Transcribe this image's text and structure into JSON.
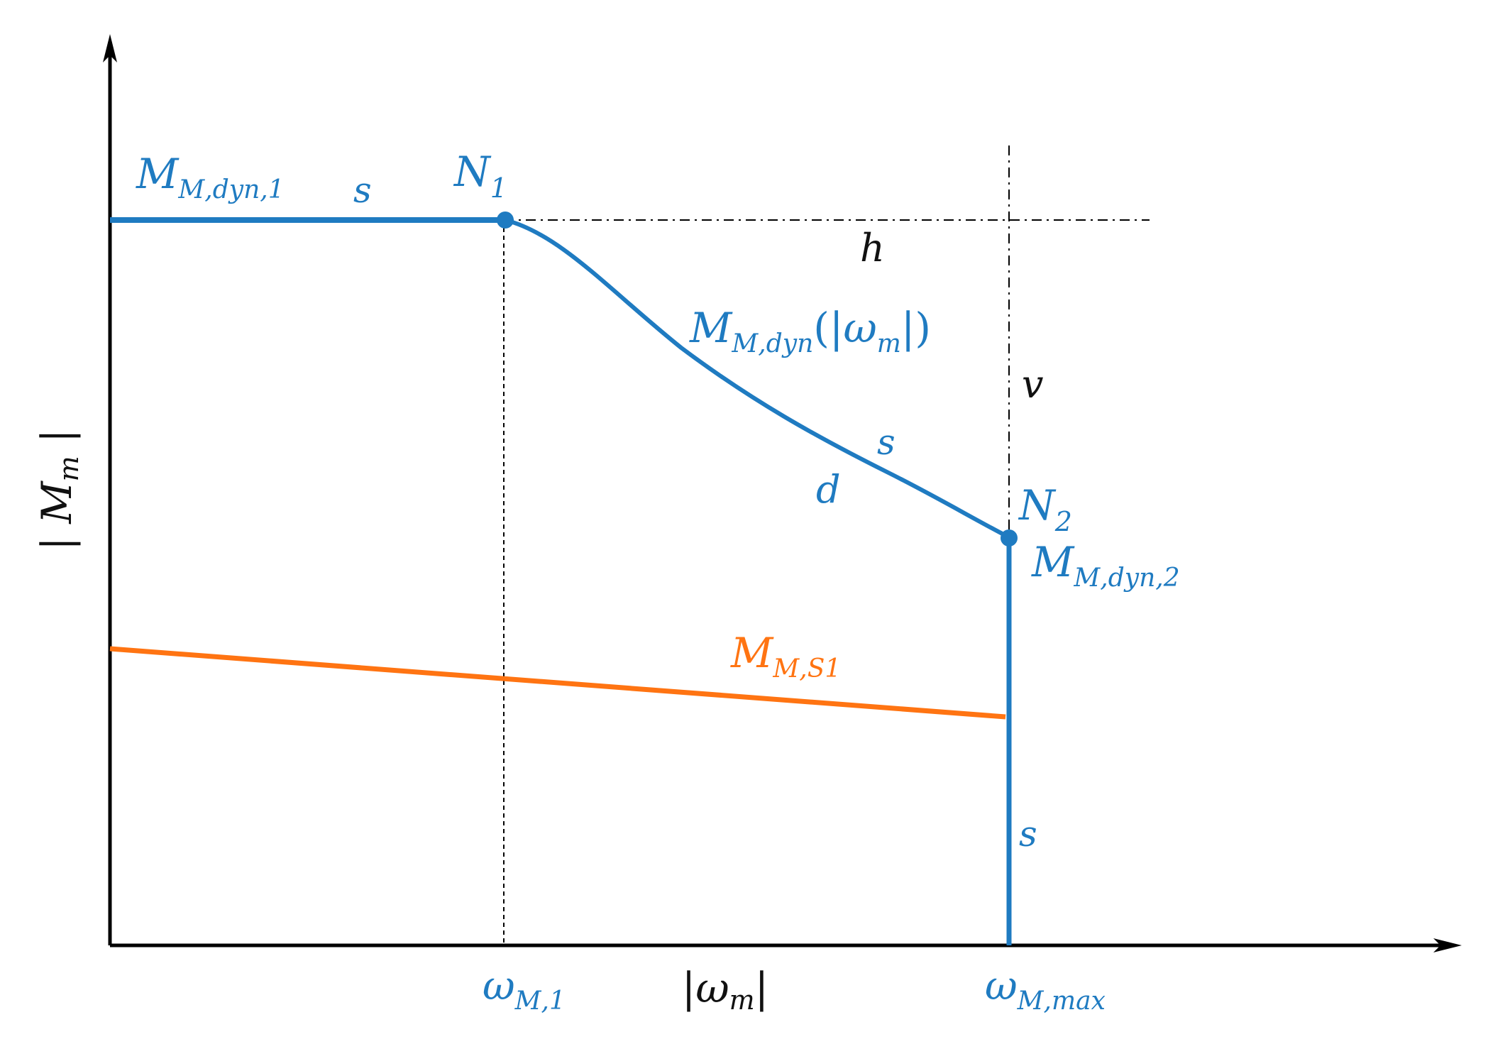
{
  "colors": {
    "blue": "#1f7bc1",
    "orange": "#ff7412",
    "axis": "#000000"
  },
  "axes": {
    "y_label": {
      "prefix": "| ",
      "main": "M",
      "sub": "m",
      "suffix": " |"
    },
    "x_label": {
      "prefix": "|",
      "main": "ω",
      "sub": "m",
      "suffix": "|"
    }
  },
  "ticks": {
    "omega_1": {
      "main": "ω",
      "sub": "M,1"
    },
    "omega_max": {
      "main": "ω",
      "sub": "M,max"
    }
  },
  "labels": {
    "m_dyn_1": {
      "main": "M",
      "sub": "M,dyn,1"
    },
    "m_dyn_2": {
      "main": "M",
      "sub": "M,dyn,2"
    },
    "m_dyn_curve": {
      "main": "M",
      "sub": "M,dyn",
      "open": "(|",
      "omega": "ω",
      "omega_sub": "m",
      "close": "|)"
    },
    "m_s1": {
      "main": "M",
      "sub": "M,S1"
    },
    "n1": {
      "main": "N",
      "sub": "1"
    },
    "n2": {
      "main": "N",
      "sub": "2"
    },
    "h": "h",
    "v": "v",
    "s_top": "s",
    "s_curve": "s",
    "d_curve": "d",
    "s_vertical": "s"
  }
}
